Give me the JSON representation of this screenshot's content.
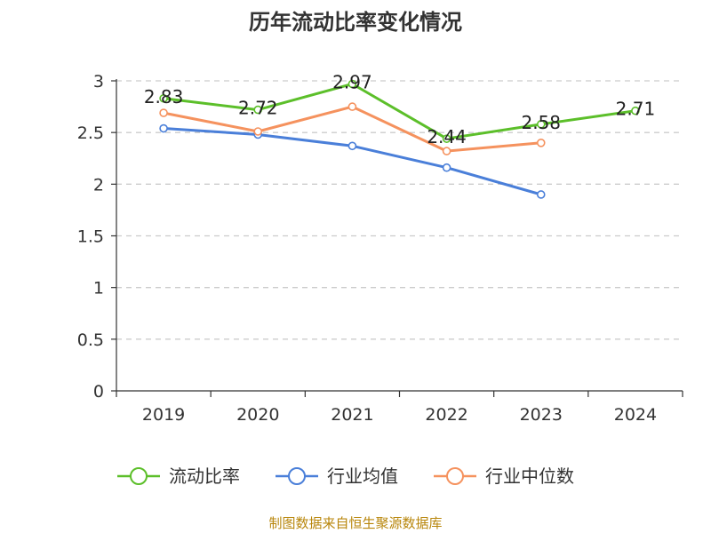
{
  "chart_data": {
    "type": "line",
    "title": "历年流动比率变化情况",
    "categories": [
      "2019",
      "2020",
      "2021",
      "2022",
      "2023",
      "2024"
    ],
    "ylim": [
      0,
      3
    ],
    "yticks": [
      "0",
      "0.5",
      "1",
      "1.5",
      "2",
      "2.5",
      "3"
    ],
    "grid": true,
    "legend_position": "bottom",
    "series": [
      {
        "name": "流动比率",
        "color": "#5cbf2a",
        "values": [
          2.83,
          2.72,
          2.97,
          2.44,
          2.58,
          2.71
        ],
        "labels": [
          "2.83",
          "2.72",
          "2.97",
          "2.44",
          "2.58",
          "2.71"
        ]
      },
      {
        "name": "行业均值",
        "color": "#4a7fd9",
        "values": [
          2.54,
          2.48,
          2.37,
          2.16,
          1.9,
          null
        ]
      },
      {
        "name": "行业中位数",
        "color": "#f5925e",
        "values": [
          2.69,
          2.51,
          2.75,
          2.32,
          2.4,
          null
        ]
      }
    ],
    "source": "制图数据来自恒生聚源数据库"
  }
}
